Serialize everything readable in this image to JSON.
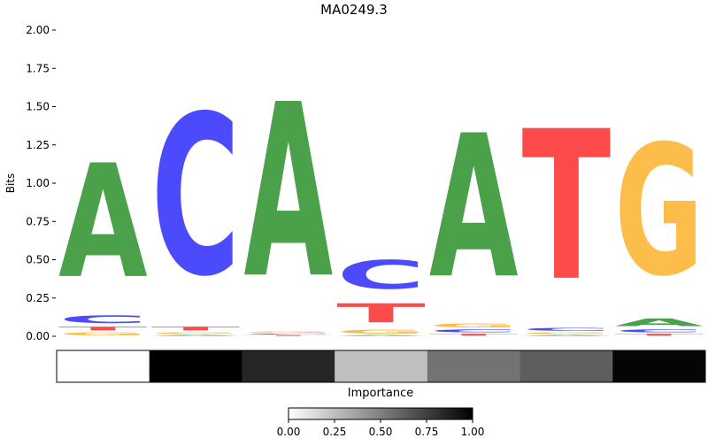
{
  "chart_data": {
    "type": "sequence-logo",
    "title": "MA0249.3",
    "ylabel": "Bits",
    "ylim": [
      0,
      2.0
    ],
    "yticks": [
      "0.00",
      "0.25",
      "0.50",
      "0.75",
      "1.00",
      "1.25",
      "1.50",
      "1.75",
      "2.00"
    ],
    "colors": {
      "A": "#4aa14a",
      "C": "#4b4bfd",
      "G": "#fdbd4b",
      "T": "#fd4b4b"
    },
    "positions": [
      {
        "stack": [
          {
            "base": "G",
            "bits": 0.03
          },
          {
            "base": "T",
            "bits": 0.04
          },
          {
            "base": "C",
            "bits": 0.08
          },
          {
            "base": "A",
            "bits": 1.19
          }
        ]
      },
      {
        "stack": [
          {
            "base": "A",
            "bits": 0.01
          },
          {
            "base": "G",
            "bits": 0.02
          },
          {
            "base": "T",
            "bits": 0.04
          },
          {
            "base": "C",
            "bits": 1.68
          }
        ]
      },
      {
        "stack": [
          {
            "base": "T",
            "bits": 0.01
          },
          {
            "base": "C",
            "bits": 0.01
          },
          {
            "base": "G",
            "bits": 0.01
          },
          {
            "base": "A",
            "bits": 1.82
          }
        ]
      },
      {
        "stack": [
          {
            "base": "A",
            "bits": 0.01
          },
          {
            "base": "G",
            "bits": 0.04
          },
          {
            "base": "T",
            "bits": 0.2
          },
          {
            "base": "C",
            "bits": 0.3
          }
        ]
      },
      {
        "stack": [
          {
            "base": "T",
            "bits": 0.02
          },
          {
            "base": "C",
            "bits": 0.03
          },
          {
            "base": "G",
            "bits": 0.04
          },
          {
            "base": "A",
            "bits": 1.5
          }
        ]
      },
      {
        "stack": [
          {
            "base": "A",
            "bits": 0.01
          },
          {
            "base": "G",
            "bits": 0.02
          },
          {
            "base": "C",
            "bits": 0.03
          },
          {
            "base": "T",
            "bits": 1.57
          }
        ]
      },
      {
        "stack": [
          {
            "base": "T",
            "bits": 0.02
          },
          {
            "base": "C",
            "bits": 0.03
          },
          {
            "base": "A",
            "bits": 0.08
          },
          {
            "base": "G",
            "bits": 1.37
          }
        ]
      }
    ],
    "importance_label": "Importance",
    "importance": [
      0.0,
      1.0,
      0.85,
      0.25,
      0.55,
      0.63,
      0.98
    ],
    "colorbar": {
      "ticks": [
        "0.00",
        "0.25",
        "0.50",
        "0.75",
        "1.00"
      ],
      "range": [
        0,
        1
      ]
    }
  }
}
